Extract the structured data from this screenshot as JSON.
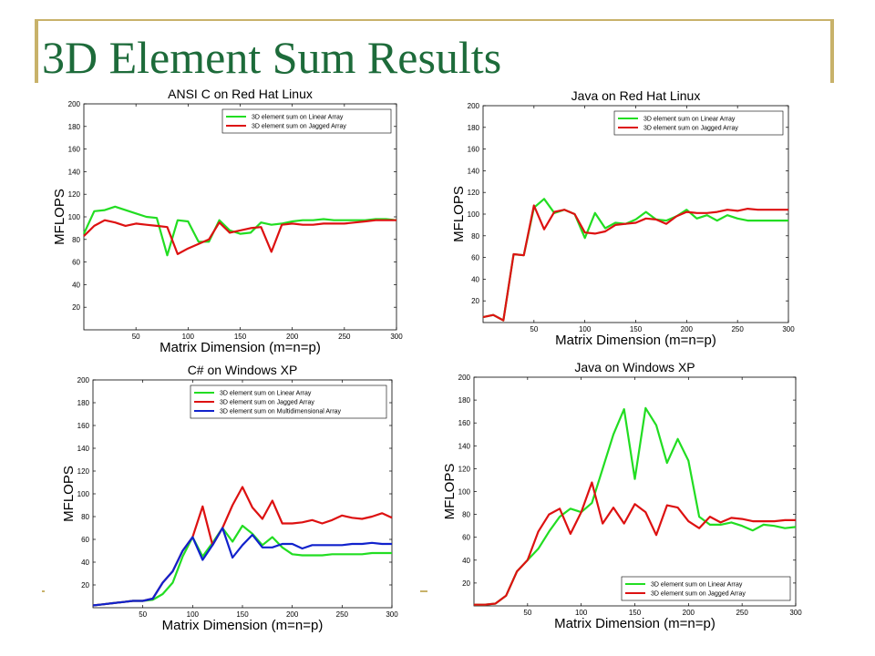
{
  "slide": {
    "title": "3D Element Sum Results"
  },
  "colors": {
    "title": "#1d6b3a",
    "decoration": "#c8b26a",
    "linear": "#22dd22",
    "jagged": "#dd1111",
    "multi": "#1122cc"
  },
  "chart_data": [
    {
      "type": "line",
      "title": "ANSI C on Red Hat Linux",
      "xlabel": "Matrix Dimension (m=n=p)",
      "ylabel": "MFLOPS",
      "xlim": [
        0,
        300
      ],
      "ylim": [
        0,
        200
      ],
      "xticks": [
        50,
        100,
        150,
        200,
        250,
        300
      ],
      "yticks": [
        20,
        40,
        60,
        80,
        100,
        120,
        140,
        160,
        180,
        200
      ],
      "legend_position": "top-right",
      "grid": false,
      "series": [
        {
          "name": "3D element sum on Linear Array",
          "color": "#22dd22",
          "x": [
            0,
            10,
            20,
            30,
            40,
            50,
            60,
            70,
            80,
            90,
            100,
            110,
            120,
            130,
            140,
            150,
            160,
            170,
            180,
            190,
            200,
            210,
            220,
            230,
            240,
            250,
            260,
            270,
            280,
            290,
            300
          ],
          "y": [
            85,
            105,
            106,
            109,
            106,
            103,
            100,
            99,
            66,
            97,
            96,
            78,
            78,
            97,
            88,
            85,
            86,
            95,
            93,
            94,
            96,
            97,
            97,
            98,
            97,
            97,
            97,
            97,
            98,
            98,
            97
          ]
        },
        {
          "name": "3D element sum on Jagged Array",
          "color": "#dd1111",
          "x": [
            0,
            10,
            20,
            30,
            40,
            50,
            60,
            70,
            80,
            90,
            100,
            110,
            120,
            130,
            140,
            150,
            160,
            170,
            180,
            190,
            200,
            210,
            220,
            230,
            240,
            250,
            260,
            270,
            280,
            290,
            300
          ],
          "y": [
            83,
            92,
            97,
            95,
            92,
            94,
            93,
            92,
            91,
            67,
            72,
            76,
            80,
            95,
            86,
            88,
            90,
            91,
            69,
            93,
            94,
            93,
            93,
            94,
            94,
            94,
            95,
            96,
            97,
            97,
            97
          ]
        }
      ]
    },
    {
      "type": "line",
      "title": "Java on Red Hat Linux",
      "xlabel": "Matrix Dimension (m=n=p)",
      "ylabel": "MFLOPS",
      "xlim": [
        0,
        300
      ],
      "ylim": [
        0,
        200
      ],
      "xticks": [
        50,
        100,
        150,
        200,
        250,
        300
      ],
      "yticks": [
        20,
        40,
        60,
        80,
        100,
        120,
        140,
        160,
        180,
        200
      ],
      "legend_position": "top-right",
      "grid": false,
      "series": [
        {
          "name": "3D element sum on Linear Array",
          "color": "#22dd22",
          "x": [
            0,
            10,
            20,
            30,
            40,
            50,
            60,
            70,
            80,
            90,
            100,
            110,
            120,
            130,
            140,
            150,
            160,
            170,
            180,
            190,
            200,
            210,
            220,
            230,
            240,
            250,
            260,
            270,
            280,
            290,
            300
          ],
          "y": [
            5,
            7,
            2,
            63,
            62,
            106,
            114,
            101,
            104,
            100,
            78,
            101,
            87,
            92,
            91,
            95,
            102,
            95,
            94,
            98,
            104,
            96,
            99,
            94,
            99,
            96,
            94,
            94,
            94,
            94,
            94
          ]
        },
        {
          "name": "3D element sum on Jagged Array",
          "color": "#dd1111",
          "x": [
            0,
            10,
            20,
            30,
            40,
            50,
            60,
            70,
            80,
            90,
            100,
            110,
            120,
            130,
            140,
            150,
            160,
            170,
            180,
            190,
            200,
            210,
            220,
            230,
            240,
            250,
            260,
            270,
            280,
            290,
            300
          ],
          "y": [
            5,
            7,
            2,
            63,
            62,
            108,
            86,
            102,
            104,
            100,
            83,
            82,
            84,
            90,
            91,
            92,
            96,
            95,
            91,
            98,
            102,
            101,
            101,
            102,
            104,
            103,
            105,
            104,
            104,
            104,
            104
          ]
        }
      ]
    },
    {
      "type": "line",
      "title": "C# on Windows XP",
      "xlabel": "Matrix Dimension (m=n=p)",
      "ylabel": "MFLOPS",
      "xlim": [
        0,
        300
      ],
      "ylim": [
        0,
        200
      ],
      "xticks": [
        50,
        100,
        150,
        200,
        250,
        300
      ],
      "yticks": [
        20,
        40,
        60,
        80,
        100,
        120,
        140,
        160,
        180,
        200
      ],
      "legend_position": "top-right",
      "grid": false,
      "series": [
        {
          "name": "3D element sum on Linear Array",
          "color": "#22dd22",
          "x": [
            0,
            10,
            20,
            30,
            40,
            50,
            60,
            70,
            80,
            90,
            100,
            110,
            120,
            130,
            140,
            150,
            160,
            170,
            180,
            190,
            200,
            210,
            220,
            230,
            240,
            250,
            260,
            270,
            280,
            290,
            300
          ],
          "y": [
            2,
            3,
            4,
            5,
            6,
            6,
            7,
            12,
            22,
            45,
            62,
            45,
            57,
            70,
            58,
            72,
            65,
            55,
            62,
            53,
            47,
            46,
            46,
            46,
            47,
            47,
            47,
            47,
            48,
            48,
            48
          ]
        },
        {
          "name": "3D element sum on Jagged Array",
          "color": "#dd1111",
          "x": [
            0,
            10,
            20,
            30,
            40,
            50,
            60,
            70,
            80,
            90,
            100,
            110,
            120,
            130,
            140,
            150,
            160,
            170,
            180,
            190,
            200,
            210,
            220,
            230,
            240,
            250,
            260,
            270,
            280,
            290,
            300
          ],
          "y": [
            2,
            3,
            4,
            5,
            6,
            6,
            8,
            22,
            32,
            50,
            62,
            89,
            55,
            70,
            90,
            106,
            88,
            78,
            94,
            74,
            74,
            75,
            77,
            74,
            77,
            81,
            79,
            78,
            80,
            83,
            79
          ]
        },
        {
          "name": "3D element sum on Multidimensional Array",
          "color": "#1122cc",
          "x": [
            0,
            10,
            20,
            30,
            40,
            50,
            60,
            70,
            80,
            90,
            100,
            110,
            120,
            130,
            140,
            150,
            160,
            170,
            180,
            190,
            200,
            210,
            220,
            230,
            240,
            250,
            260,
            270,
            280,
            290,
            300
          ],
          "y": [
            2,
            3,
            4,
            5,
            6,
            6,
            8,
            22,
            32,
            50,
            62,
            42,
            55,
            70,
            44,
            55,
            64,
            53,
            53,
            56,
            56,
            52,
            55,
            55,
            55,
            55,
            56,
            56,
            57,
            56,
            56
          ]
        }
      ]
    },
    {
      "type": "line",
      "title": "Java on Windows XP",
      "xlabel": "Matrix Dimension (m=n=p)",
      "ylabel": "MFLOPS",
      "xlim": [
        0,
        300
      ],
      "ylim": [
        0,
        200
      ],
      "xticks": [
        50,
        100,
        150,
        200,
        250,
        300
      ],
      "yticks": [
        20,
        40,
        60,
        80,
        100,
        120,
        140,
        160,
        180,
        200
      ],
      "legend_position": "bottom-right",
      "grid": false,
      "series": [
        {
          "name": "3D element sum on Linear Array",
          "color": "#22dd22",
          "x": [
            0,
            10,
            20,
            30,
            40,
            50,
            60,
            70,
            80,
            90,
            100,
            110,
            120,
            130,
            140,
            150,
            160,
            170,
            180,
            190,
            200,
            210,
            220,
            230,
            240,
            250,
            260,
            270,
            280,
            290,
            300
          ],
          "y": [
            1,
            1,
            2,
            9,
            30,
            40,
            50,
            65,
            78,
            85,
            82,
            90,
            120,
            150,
            172,
            111,
            173,
            158,
            125,
            146,
            127,
            78,
            71,
            71,
            73,
            70,
            66,
            71,
            70,
            68,
            69
          ]
        },
        {
          "name": "3D element sum on Jagged Array",
          "color": "#dd1111",
          "x": [
            0,
            10,
            20,
            30,
            40,
            50,
            60,
            70,
            80,
            90,
            100,
            110,
            120,
            130,
            140,
            150,
            160,
            170,
            180,
            190,
            200,
            210,
            220,
            230,
            240,
            250,
            260,
            270,
            280,
            290,
            300
          ],
          "y": [
            1,
            1,
            2,
            9,
            30,
            40,
            65,
            80,
            85,
            63,
            82,
            108,
            72,
            86,
            72,
            89,
            82,
            62,
            88,
            86,
            74,
            68,
            78,
            73,
            77,
            76,
            74,
            74,
            74,
            75,
            75
          ]
        }
      ]
    }
  ]
}
